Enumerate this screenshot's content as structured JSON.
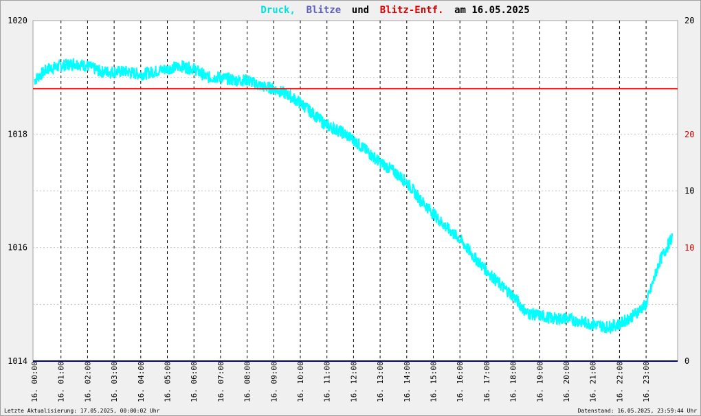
{
  "title": {
    "parts": [
      {
        "text": "Druck,",
        "color": "#00e0e0"
      },
      {
        "text": "Blitze",
        "color": "#6060c0"
      },
      {
        "text": "und",
        "color": "#000000"
      },
      {
        "text": "Blitz-Entf.",
        "color": "#dd0000"
      },
      {
        "text": "am 16.05.2025",
        "color": "#000000"
      }
    ]
  },
  "footer": {
    "left": "Letzte Aktualisierung: 17.05.2025, 00:00:02 Uhr",
    "right": "Datenstand: 16.05.2025, 23:59:44 Uhr"
  },
  "colors": {
    "pressure": "#00ffff",
    "blitze": "#000080",
    "distance": "#ee0000"
  },
  "chart_data": {
    "type": "line",
    "ylim_left": [
      1014,
      1020
    ],
    "yticks_left": [
      "1014",
      "1016",
      "1018",
      "1020"
    ],
    "yticks_right_black": [
      "0",
      "10",
      "20"
    ],
    "yticks_right_red": [
      "10",
      "20"
    ],
    "x_labels": [
      "16. 00:00",
      "16. 01:00",
      "16. 02:00",
      "16. 03:00",
      "16. 04:00",
      "16. 05:00",
      "16. 06:00",
      "16. 07:00",
      "16. 08:00",
      "16. 09:00",
      "16. 10:00",
      "16. 11:00",
      "16. 12:00",
      "16. 13:00",
      "16. 14:00",
      "16. 15:00",
      "16. 16:00",
      "16. 17:00",
      "16. 18:00",
      "16. 19:00",
      "16. 20:00",
      "16. 21:00",
      "16. 22:00",
      "16. 23:00"
    ],
    "grid": true,
    "series": [
      {
        "x_hours": [
          0,
          0.5,
          1,
          1.5,
          2,
          2.5,
          3,
          3.5,
          4,
          4.5,
          5,
          5.5,
          6,
          6.5,
          7,
          7.5,
          8,
          8.5,
          9,
          9.5,
          10,
          10.5,
          11,
          11.5,
          12,
          12.5,
          13,
          13.5,
          14,
          14.5,
          15,
          15.5,
          16,
          16.5,
          17,
          17.5,
          18,
          18.5,
          19,
          19.5,
          20,
          20.5,
          21,
          21.5,
          22,
          22.5,
          23,
          23.5,
          24
        ],
        "values": [
          1018.95,
          1019.15,
          1019.2,
          1019.25,
          1019.2,
          1019.1,
          1019.1,
          1019.1,
          1019.05,
          1019.1,
          1019.15,
          1019.2,
          1019.15,
          1019.0,
          1019.0,
          1018.95,
          1018.95,
          1018.85,
          1018.8,
          1018.7,
          1018.55,
          1018.35,
          1018.15,
          1018.05,
          1017.9,
          1017.7,
          1017.5,
          1017.35,
          1017.15,
          1016.85,
          1016.6,
          1016.35,
          1016.15,
          1015.85,
          1015.6,
          1015.35,
          1015.15,
          1014.85,
          1014.8,
          1014.75,
          1014.75,
          1014.7,
          1014.65,
          1014.6,
          1014.65,
          1014.8,
          1015.0,
          1015.75,
          1016.2
        ]
      },
      {
        "value": 1018.8
      },
      {
        "value": 0
      }
    ]
  }
}
